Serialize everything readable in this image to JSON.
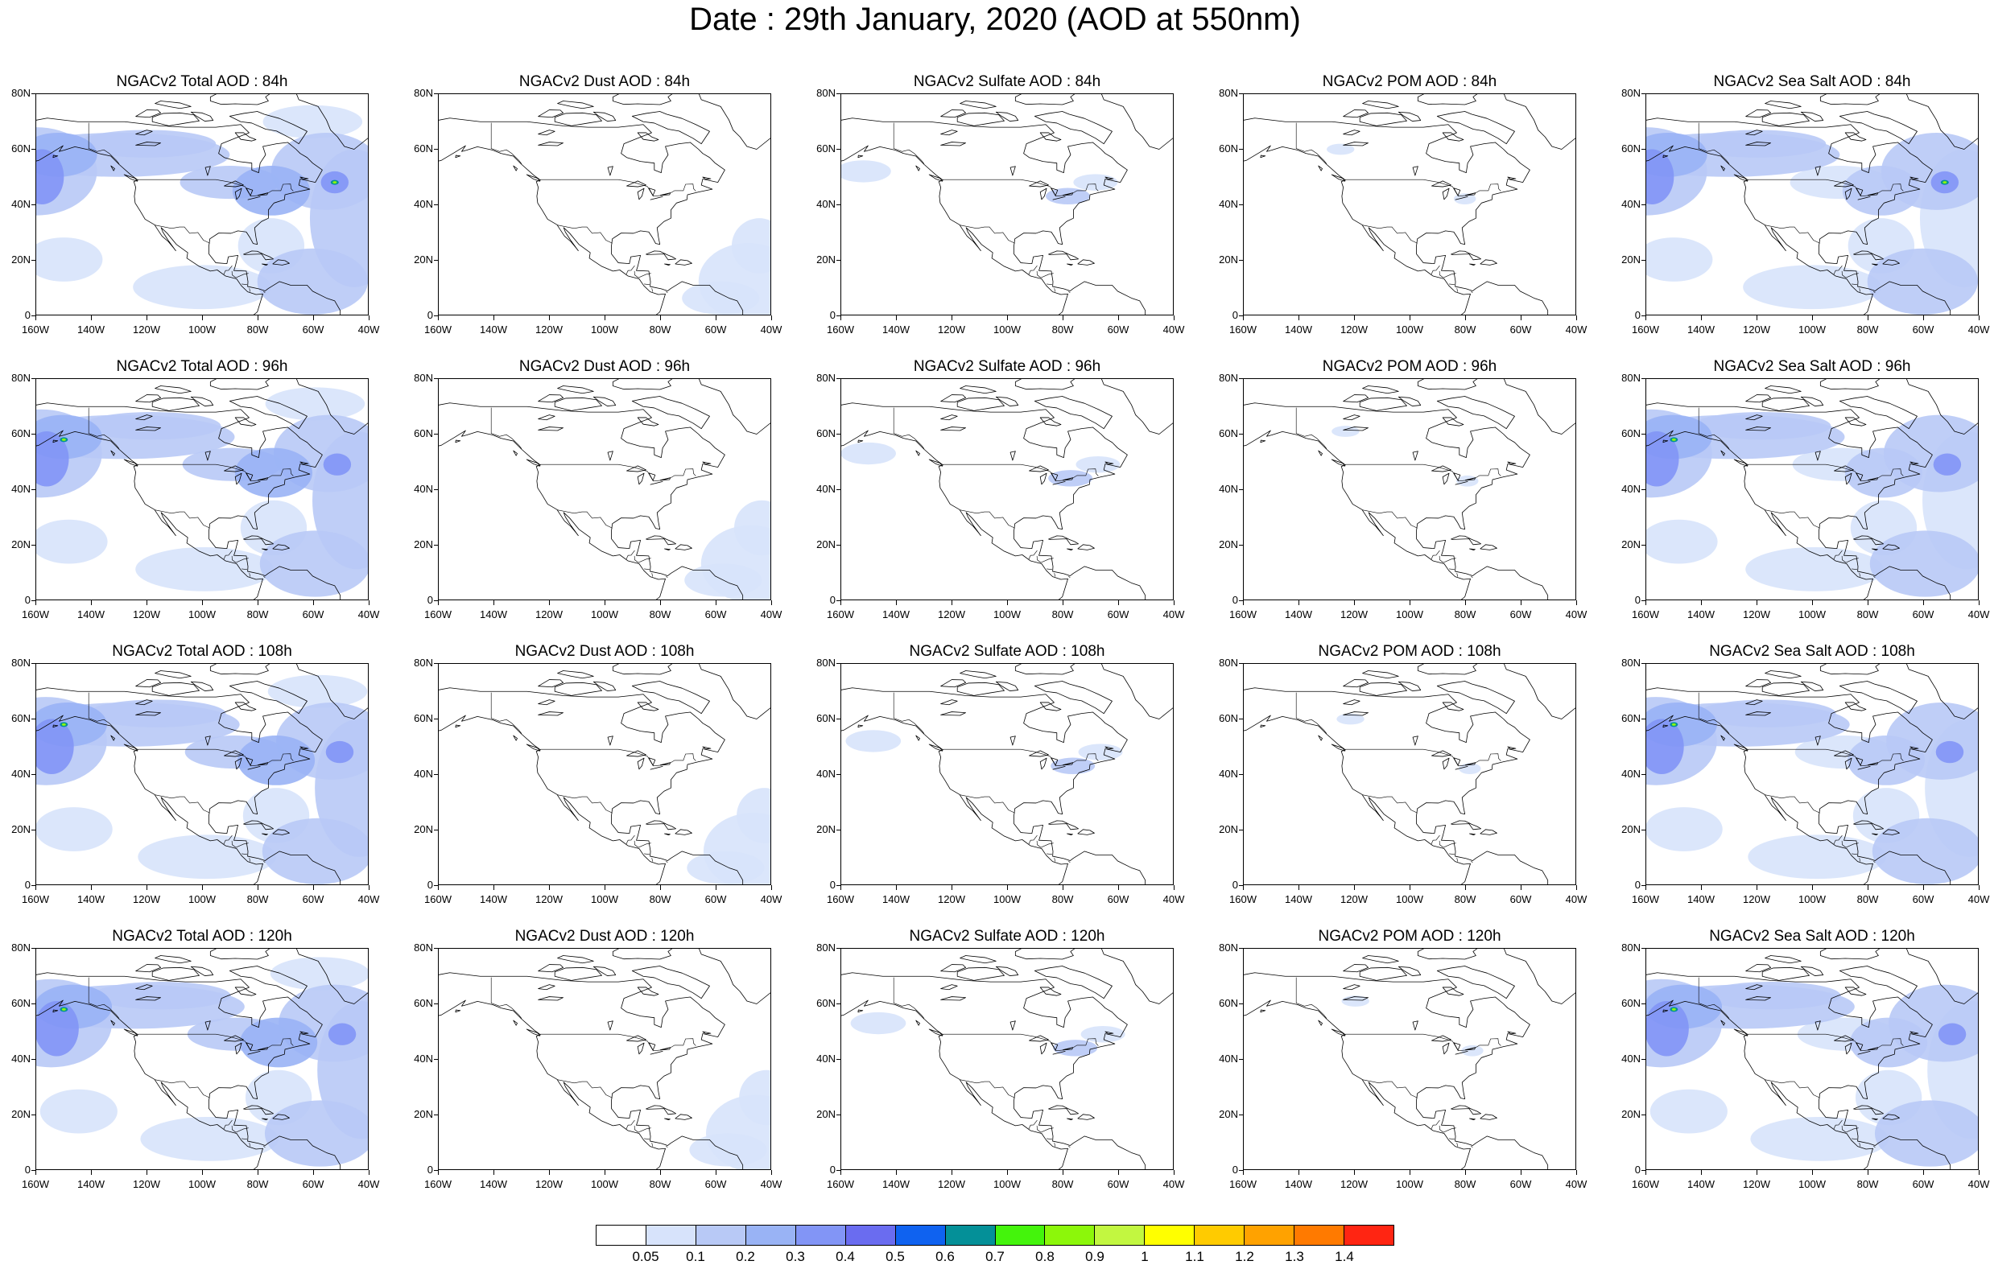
{
  "title": "Date : 29th January, 2020 (AOD at 550nm)",
  "rows": [
    [
      "NGACv2 Total AOD : 84h",
      "NGACv2 Dust AOD : 84h",
      "NGACv2 Sulfate AOD : 84h",
      "NGACv2 POM AOD : 84h",
      "NGACv2 Sea Salt AOD : 84h"
    ],
    [
      "NGACv2 Total AOD : 96h",
      "NGACv2 Dust AOD : 96h",
      "NGACv2 Sulfate AOD : 96h",
      "NGACv2 POM AOD : 96h",
      "NGACv2 Sea Salt AOD : 96h"
    ],
    [
      "NGACv2 Total AOD : 108h",
      "NGACv2 Dust AOD : 108h",
      "NGACv2 Sulfate AOD : 108h",
      "NGACv2 POM AOD : 108h",
      "NGACv2 Sea Salt AOD : 108h"
    ],
    [
      "NGACv2 Total AOD : 120h",
      "NGACv2 Dust AOD : 120h",
      "NGACv2 Sulfate AOD : 120h",
      "NGACv2 POM AOD : 120h",
      "NGACv2 Sea Salt  AOD : 120h"
    ]
  ],
  "map_region": {
    "lon_ticks": [
      "160W",
      "140W",
      "120W",
      "100W",
      "80W",
      "60W",
      "40W"
    ],
    "lat_ticks": [
      "80N",
      "60N",
      "40N",
      "20N",
      "0"
    ],
    "lon_range": [
      -160,
      -40
    ],
    "lat_range": [
      0,
      80
    ]
  },
  "colorbar": {
    "labels": [
      "0.05",
      "0.1",
      "0.2",
      "0.3",
      "0.4",
      "0.5",
      "0.6",
      "0.7",
      "0.8",
      "0.9",
      "1",
      "1.1",
      "1.2",
      "1.3",
      "1.4"
    ],
    "colors": [
      "#ffffff",
      "#d7e3fb",
      "#b8c9f6",
      "#99b3f5",
      "#8295f6",
      "#6a6cf0",
      "#0f62f0",
      "#049098",
      "#44f40c",
      "#8cf70a",
      "#c2f740",
      "#ffff00",
      "#ffcb00",
      "#ffa200",
      "#ff7a00",
      "#ff2512"
    ]
  }
}
